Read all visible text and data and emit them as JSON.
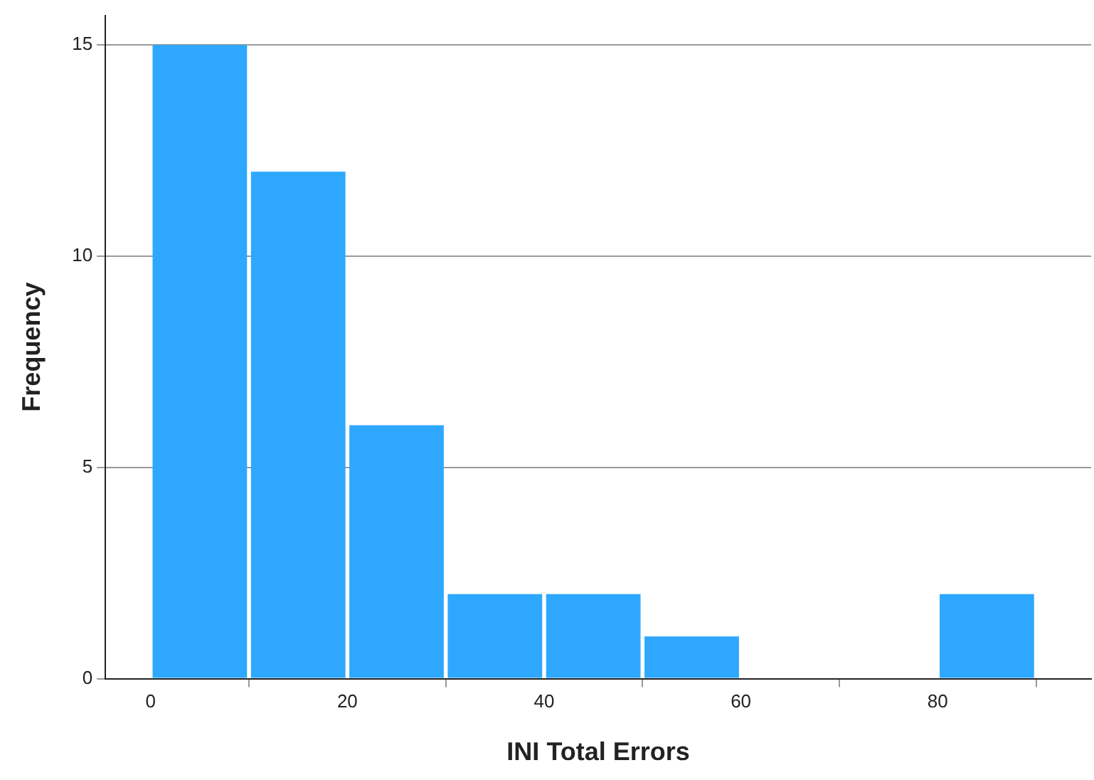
{
  "chart_data": {
    "type": "histogram",
    "xlabel": "INI Total Errors",
    "ylabel": "Frequency",
    "bins": [
      0,
      10,
      20,
      30,
      40,
      50,
      60,
      70,
      80,
      90
    ],
    "values": [
      15,
      12,
      6,
      2,
      2,
      1,
      0,
      0,
      2
    ],
    "color": "#2ea8fe",
    "xlim": [
      -4.6,
      95.6
    ],
    "xticks": [
      0,
      20,
      40,
      60,
      80
    ],
    "ylim": [
      0,
      15.7
    ],
    "yticks": [
      0,
      5,
      10,
      15
    ],
    "grid": "y"
  }
}
